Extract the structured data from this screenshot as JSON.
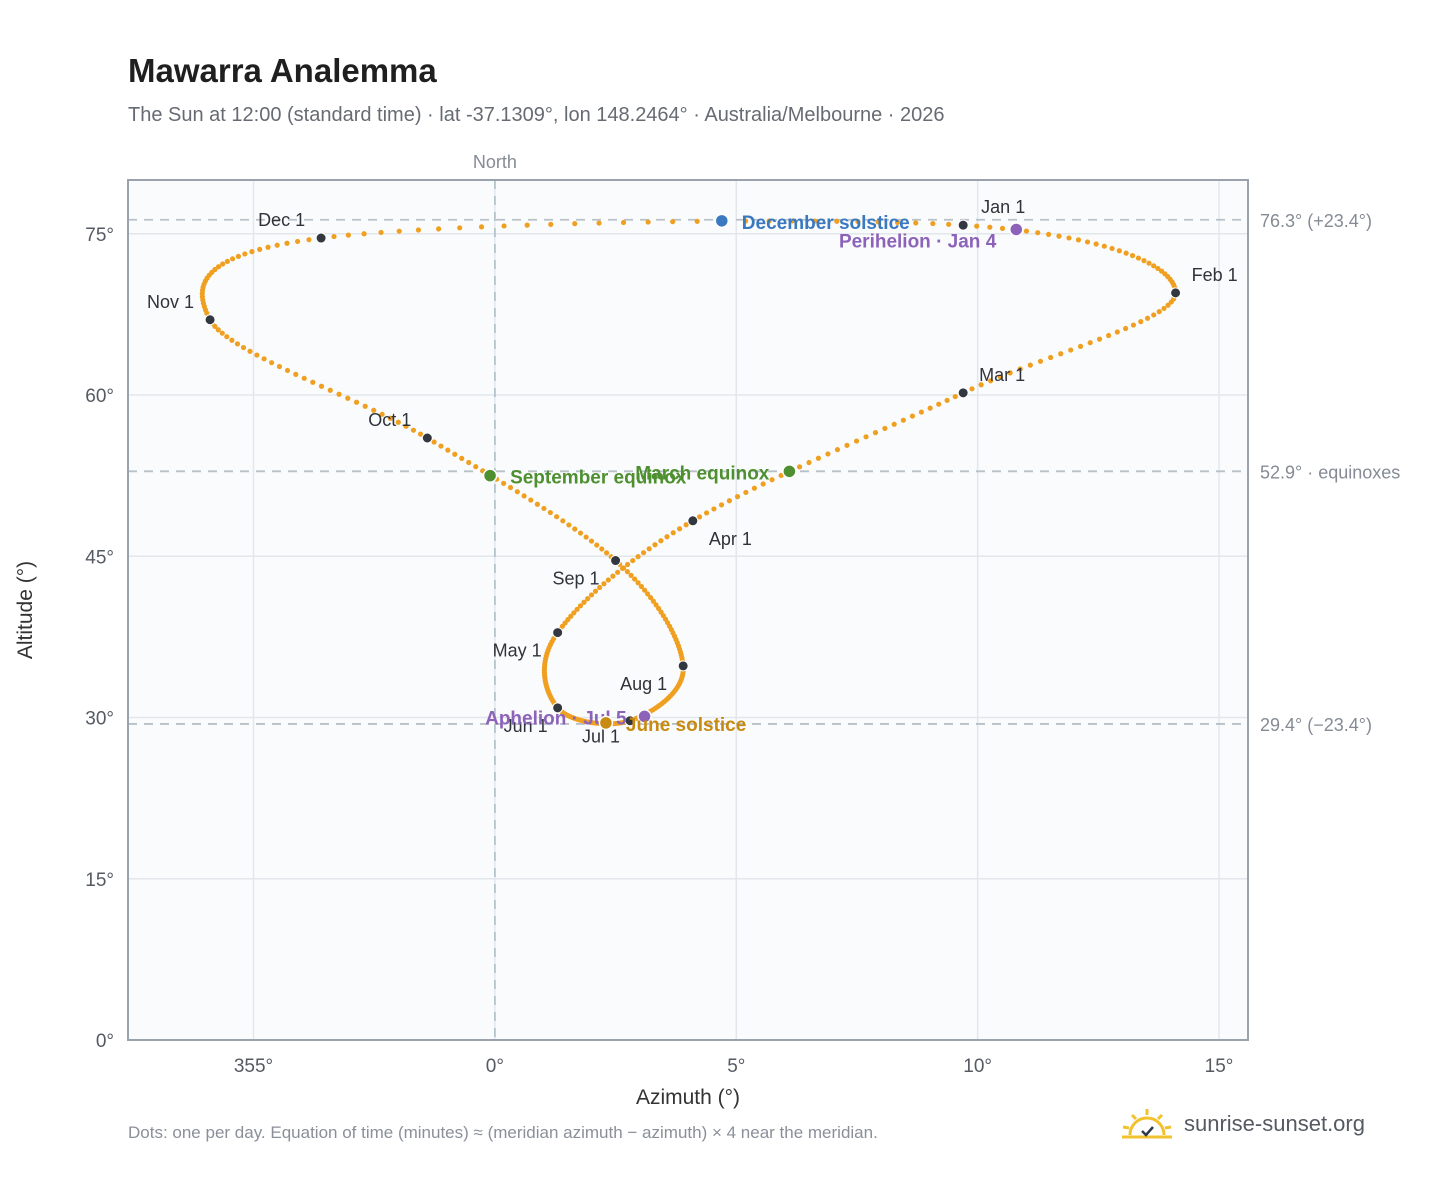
{
  "header": {
    "title": "Mawarra Analemma",
    "subtitle": "The Sun at 12:00 (standard time) · lat -37.1309°, lon 148.2464° · Australia/Melbourne · 2026"
  },
  "footer": {
    "note": "Dots: one per day. Equation of time (minutes) ≈ (meridian azimuth − azimuth) × 4 near the meridian.",
    "brand": "sunrise-sunset.org"
  },
  "colors": {
    "path": "#f0a020",
    "month_marker": "#333840",
    "december": "#3a78c0",
    "perihelion": "#8c63b8",
    "equinox": "#4e9030",
    "june": "#c88a10",
    "reference_line": "#b8c0c8",
    "plot_bg": "#fafbfd",
    "grid": "#e3e7ec",
    "frame": "#9aa3ad"
  },
  "chart_data": {
    "type": "scatter",
    "xlabel": "Azimuth (°)",
    "ylabel": "Altitude (°)",
    "x_ticks": [
      "355°",
      "0°",
      "5°",
      "10°",
      "15°"
    ],
    "y_ticks": [
      "0°",
      "15°",
      "30°",
      "45°",
      "60°",
      "75°"
    ],
    "xlim": [
      -7.6,
      15.6
    ],
    "ylim": [
      0,
      80
    ],
    "grid": true,
    "north_label": "North",
    "reference_lines": [
      {
        "altitude": 76.3,
        "label": "76.3° (+23.4°)"
      },
      {
        "altitude": 52.9,
        "label": "52.9° · equinoxes"
      },
      {
        "altitude": 29.4,
        "label": "29.4° (−23.4°)"
      }
    ],
    "months": [
      {
        "label": "Jan 1",
        "az": 9.7,
        "alt": 75.8
      },
      {
        "label": "Feb 1",
        "az": 14.1,
        "alt": 69.5
      },
      {
        "label": "Mar 1",
        "az": 9.7,
        "alt": 60.2
      },
      {
        "label": "Apr 1",
        "az": 4.1,
        "alt": 48.3
      },
      {
        "label": "May 1",
        "az": 1.3,
        "alt": 37.9
      },
      {
        "label": "Jun 1",
        "az": 1.3,
        "alt": 30.9
      },
      {
        "label": "Jul 1",
        "az": 2.8,
        "alt": 29.7
      },
      {
        "label": "Aug 1",
        "az": 3.9,
        "alt": 34.8
      },
      {
        "label": "Sep 1",
        "az": 2.5,
        "alt": 44.6
      },
      {
        "label": "Oct 1",
        "az": -1.4,
        "alt": 56.0
      },
      {
        "label": "Nov 1",
        "az": -5.9,
        "alt": 67.0
      },
      {
        "label": "Dec 1",
        "az": -3.6,
        "alt": 74.6
      }
    ],
    "events": [
      {
        "label": "December solstice",
        "az": 4.7,
        "alt": 76.2,
        "color": "#3a78c0"
      },
      {
        "label": "Perihelion · Jan 4",
        "az": 10.8,
        "alt": 75.4,
        "color": "#8c63b8"
      },
      {
        "label": "March equinox",
        "az": 6.1,
        "alt": 52.9,
        "color": "#4e9030"
      },
      {
        "label": "September equinox",
        "az": -0.1,
        "alt": 52.5,
        "color": "#4e9030"
      },
      {
        "label": "Aphelion · Jul 5",
        "az": 3.1,
        "alt": 30.1,
        "color": "#8c63b8"
      },
      {
        "label": "June solstice",
        "az": 2.3,
        "alt": 29.5,
        "color": "#c88a10"
      }
    ]
  }
}
